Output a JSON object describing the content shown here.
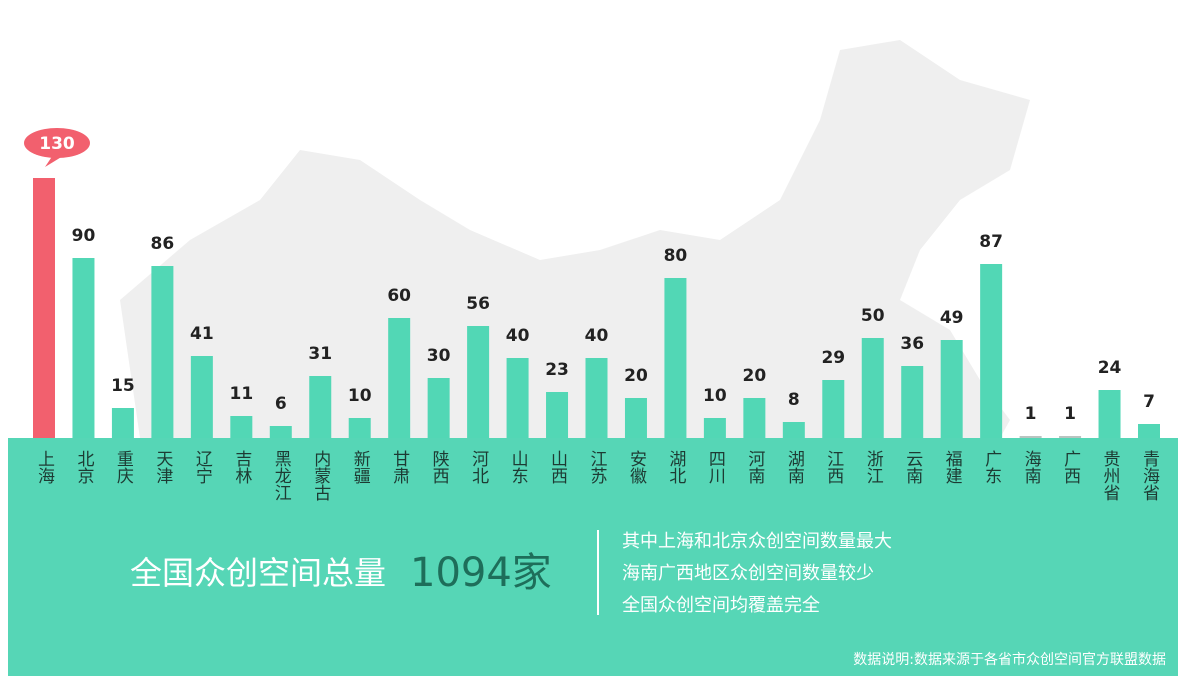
{
  "chart_data": {
    "type": "bar",
    "categories": [
      "上海",
      "北京",
      "重庆",
      "天津",
      "辽宁",
      "吉林",
      "黑龙江",
      "内蒙古",
      "新疆",
      "甘肃",
      "陕西",
      "河北",
      "山东",
      "山西",
      "江苏",
      "安徽",
      "湖北",
      "四川",
      "河南",
      "湖南",
      "江西",
      "浙江",
      "云南",
      "福建",
      "广东",
      "海南",
      "广西",
      "贵州省",
      "青海省"
    ],
    "values": [
      130,
      90,
      15,
      86,
      41,
      11,
      6,
      31,
      10,
      60,
      30,
      56,
      40,
      23,
      40,
      20,
      80,
      10,
      20,
      8,
      29,
      50,
      36,
      49,
      87,
      1,
      1,
      24,
      7
    ],
    "colors": [
      "#f2606e",
      "#52d7b5",
      "#52d7b5",
      "#52d7b5",
      "#52d7b5",
      "#52d7b5",
      "#52d7b5",
      "#52d7b5",
      "#52d7b5",
      "#52d7b5",
      "#52d7b5",
      "#52d7b5",
      "#52d7b5",
      "#52d7b5",
      "#52d7b5",
      "#52d7b5",
      "#52d7b5",
      "#52d7b5",
      "#52d7b5",
      "#52d7b5",
      "#52d7b5",
      "#52d7b5",
      "#52d7b5",
      "#52d7b5",
      "#52d7b5",
      "#b8c4c0",
      "#b8c4c0",
      "#52d7b5",
      "#52d7b5"
    ]
  },
  "summary": {
    "label": "全国众创空间总量",
    "total": "1094家",
    "notes": [
      "其中上海和北京众创空间数量最大",
      "海南广西地区众创空间数量较少",
      "全国众创空间均覆盖完全"
    ],
    "source": "数据说明:数据来源于各省市众创空间官方联盟数据"
  }
}
